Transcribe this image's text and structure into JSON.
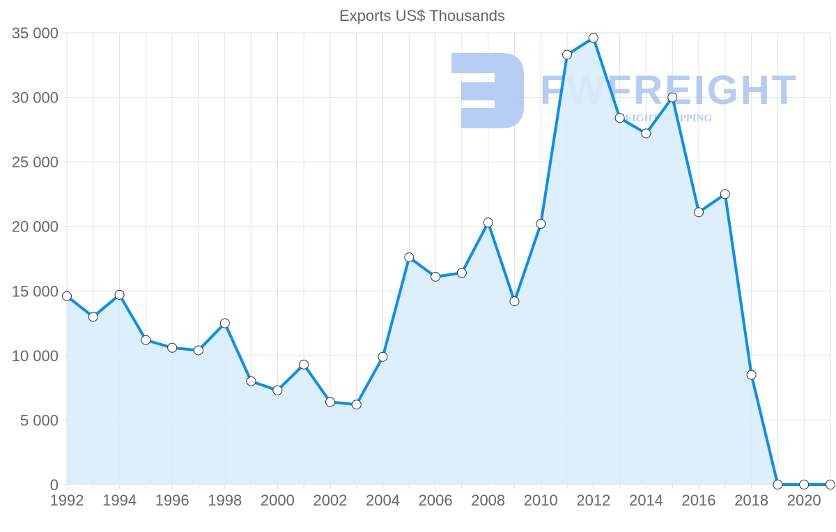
{
  "watermark": {
    "brand": "FWFREIGHT",
    "tagline": "FREIGHT SHIPPING"
  },
  "colors": {
    "line": "#0a8ff0",
    "fill": "#d9ecfc",
    "grid": "#e2e2e2",
    "watermark": "#a9c4f2"
  },
  "chart_data": {
    "type": "area",
    "title": "Exports US$ Thousands",
    "xlabel": "",
    "ylabel": "",
    "x": [
      1992,
      1993,
      1994,
      1995,
      1996,
      1997,
      1998,
      1999,
      2000,
      2001,
      2002,
      2003,
      2004,
      2005,
      2006,
      2007,
      2008,
      2009,
      2010,
      2011,
      2012,
      2013,
      2014,
      2015,
      2016,
      2017,
      2018,
      2019,
      2020,
      2021
    ],
    "values": [
      14600,
      13000,
      14700,
      11200,
      10600,
      10400,
      12500,
      8000,
      7300,
      9300,
      6400,
      6200,
      9900,
      17600,
      16100,
      16400,
      20300,
      14200,
      20200,
      33300,
      34600,
      28400,
      27200,
      30000,
      21100,
      22500,
      8500,
      0,
      0,
      0
    ],
    "xlim": [
      1992,
      2021
    ],
    "ylim": [
      0,
      35000
    ],
    "x_ticks": [
      "1992",
      "1994",
      "1996",
      "1998",
      "2000",
      "2002",
      "2004",
      "2006",
      "2008",
      "2010",
      "2012",
      "2014",
      "2016",
      "2018",
      "2020"
    ],
    "y_ticks": [
      "0",
      "5 000",
      "10 000",
      "15 000",
      "20 000",
      "25 000",
      "30 000",
      "35 000"
    ],
    "grid": true,
    "legend": "none"
  }
}
